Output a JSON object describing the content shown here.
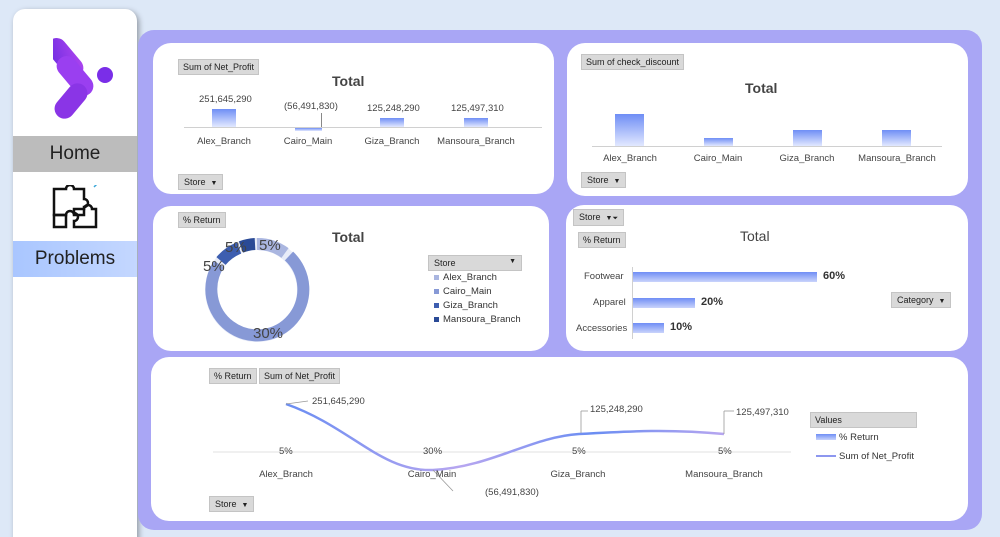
{
  "nav": {
    "home": "Home",
    "problems": "Problems"
  },
  "card_profit": {
    "field": "Sum of Net_Profit",
    "title": "Total",
    "filter": "Store",
    "stores": [
      "Alex_Branch",
      "Cairo_Main",
      "Giza_Branch",
      "Mansoura_Branch"
    ],
    "labels": [
      "251,645,290",
      "(56,491,830)",
      "125,248,290",
      "125,497,310"
    ]
  },
  "card_discount": {
    "field": "Sum of check_discount",
    "title": "Total",
    "filter": "Store",
    "stores": [
      "Alex_Branch",
      "Cairo_Main",
      "Giza_Branch",
      "Mansoura_Branch"
    ]
  },
  "card_return": {
    "field": "% Return",
    "title": "Total",
    "legend_title": "Store",
    "legend": [
      "Alex_Branch",
      "Cairo_Main",
      "Giza_Branch",
      "Mansoura_Branch"
    ],
    "labels": [
      "5%",
      "30%",
      "5%",
      "5%"
    ]
  },
  "card_category": {
    "filter": "Store",
    "field": "% Return",
    "title": "Total",
    "category_filter": "Category",
    "categories": [
      "Footwear",
      "Apparel",
      "Accessories"
    ],
    "labels": [
      "60%",
      "20%",
      "10%"
    ]
  },
  "card_combo": {
    "field1": "% Return",
    "field2": "Sum of Net_Profit",
    "filter": "Store",
    "legend_title": "Values",
    "legend": [
      "% Return",
      "Sum of Net_Profit"
    ],
    "stores": [
      "Alex_Branch",
      "Cairo_Main",
      "Giza_Branch",
      "Mansoura_Branch"
    ],
    "pct_labels": [
      "5%",
      "30%",
      "5%",
      "5%"
    ],
    "profit_labels": [
      "251,645,290",
      "(56,491,830)",
      "125,248,290",
      "125,497,310"
    ]
  },
  "chart_data": [
    {
      "type": "bar",
      "title": "Total",
      "categories": [
        "Alex_Branch",
        "Cairo_Main",
        "Giza_Branch",
        "Mansoura_Branch"
      ],
      "series": [
        {
          "name": "Sum of Net_Profit",
          "values": [
            251645290,
            -56491830,
            125248290,
            125497310
          ]
        }
      ]
    },
    {
      "type": "bar",
      "title": "Total",
      "categories": [
        "Alex_Branch",
        "Cairo_Main",
        "Giza_Branch",
        "Mansoura_Branch"
      ],
      "series": [
        {
          "name": "Sum of check_discount",
          "values": [
            100,
            25,
            50,
            50
          ]
        }
      ]
    },
    {
      "type": "pie",
      "title": "Total",
      "categories": [
        "Alex_Branch",
        "Cairo_Main",
        "Giza_Branch",
        "Mansoura_Branch"
      ],
      "series": [
        {
          "name": "% Return",
          "values": [
            5,
            30,
            5,
            5
          ]
        }
      ]
    },
    {
      "type": "bar",
      "title": "Total",
      "categories": [
        "Footwear",
        "Apparel",
        "Accessories"
      ],
      "series": [
        {
          "name": "% Return",
          "values": [
            60,
            20,
            10
          ]
        }
      ]
    },
    {
      "type": "line",
      "categories": [
        "Alex_Branch",
        "Cairo_Main",
        "Giza_Branch",
        "Mansoura_Branch"
      ],
      "series": [
        {
          "name": "% Return",
          "values": [
            5,
            30,
            5,
            5
          ]
        },
        {
          "name": "Sum of Net_Profit",
          "values": [
            251645290,
            -56491830,
            125248290,
            125497310
          ]
        }
      ]
    }
  ]
}
